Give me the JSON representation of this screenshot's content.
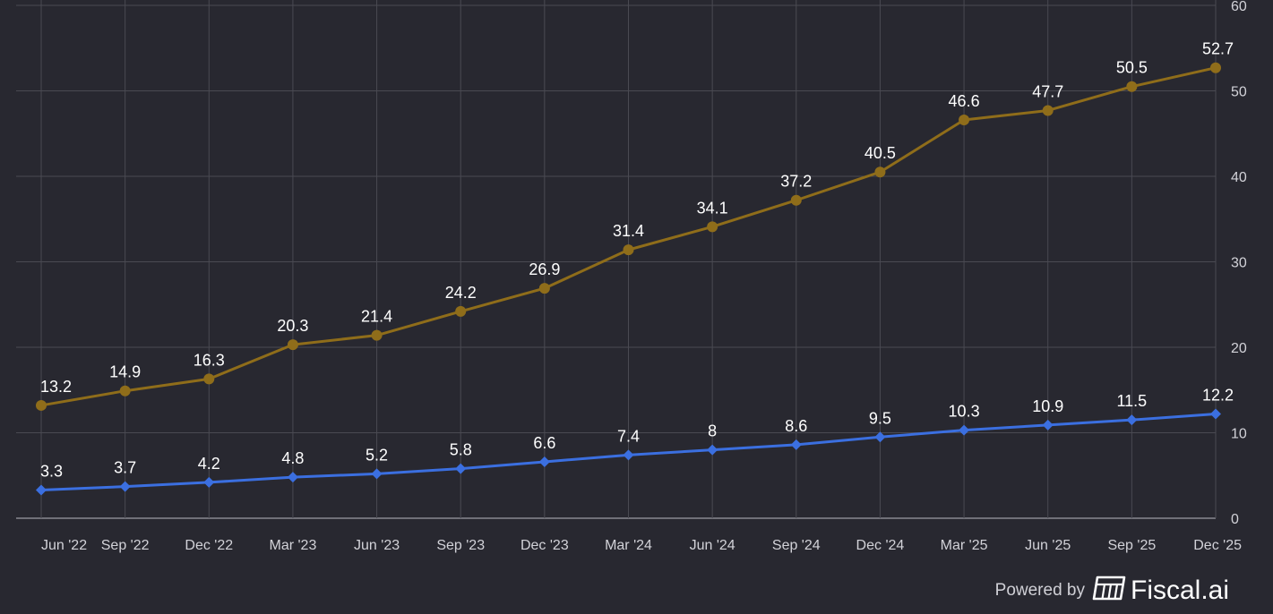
{
  "chart_data": {
    "type": "line",
    "categories": [
      "Jun '22",
      "Sep '22",
      "Dec '22",
      "Mar '23",
      "Jun '23",
      "Sep '23",
      "Dec '23",
      "Mar '24",
      "Jun '24",
      "Sep '24",
      "Dec '24",
      "Mar '25",
      "Jun '25",
      "Sep '25",
      "Dec '25"
    ],
    "series": [
      {
        "name": "Series 1",
        "color": "#8f6d1a",
        "marker": "circle",
        "values": [
          13.2,
          14.9,
          16.3,
          20.3,
          21.4,
          24.2,
          26.9,
          31.4,
          34.1,
          37.2,
          40.5,
          46.6,
          47.7,
          50.5,
          52.7
        ],
        "labels": [
          "13.2",
          "14.9",
          "16.3",
          "20.3",
          "21.4",
          "24.2",
          "26.9",
          "31.4",
          "34.1",
          "37.2",
          "40.5",
          "46.6",
          "47.7",
          "50.5",
          "52.7"
        ]
      },
      {
        "name": "Series 2",
        "color": "#3b6fe0",
        "marker": "diamond",
        "values": [
          3.3,
          3.7,
          4.2,
          4.8,
          5.2,
          5.8,
          6.6,
          7.4,
          8,
          8.6,
          9.5,
          10.3,
          10.9,
          11.5,
          12.2
        ],
        "labels": [
          "3.3",
          "3.7",
          "4.2",
          "4.8",
          "5.2",
          "5.8",
          "6.6",
          "7.4",
          "8",
          "8.6",
          "9.5",
          "10.3",
          "10.9",
          "11.5",
          "12.2"
        ]
      }
    ],
    "ylim": [
      0,
      60
    ],
    "yticks": [
      0,
      10,
      20,
      30,
      40,
      50,
      60
    ],
    "ytick_labels": [
      "0",
      "10",
      "20",
      "30",
      "40",
      "50",
      "60"
    ],
    "y_axis_side": "right",
    "grid": true,
    "title": "",
    "xlabel": "",
    "ylabel": ""
  },
  "branding": {
    "powered_by": "Powered by",
    "name": "Fiscal.ai",
    "logo_icon": "fiscal-logo-icon"
  }
}
